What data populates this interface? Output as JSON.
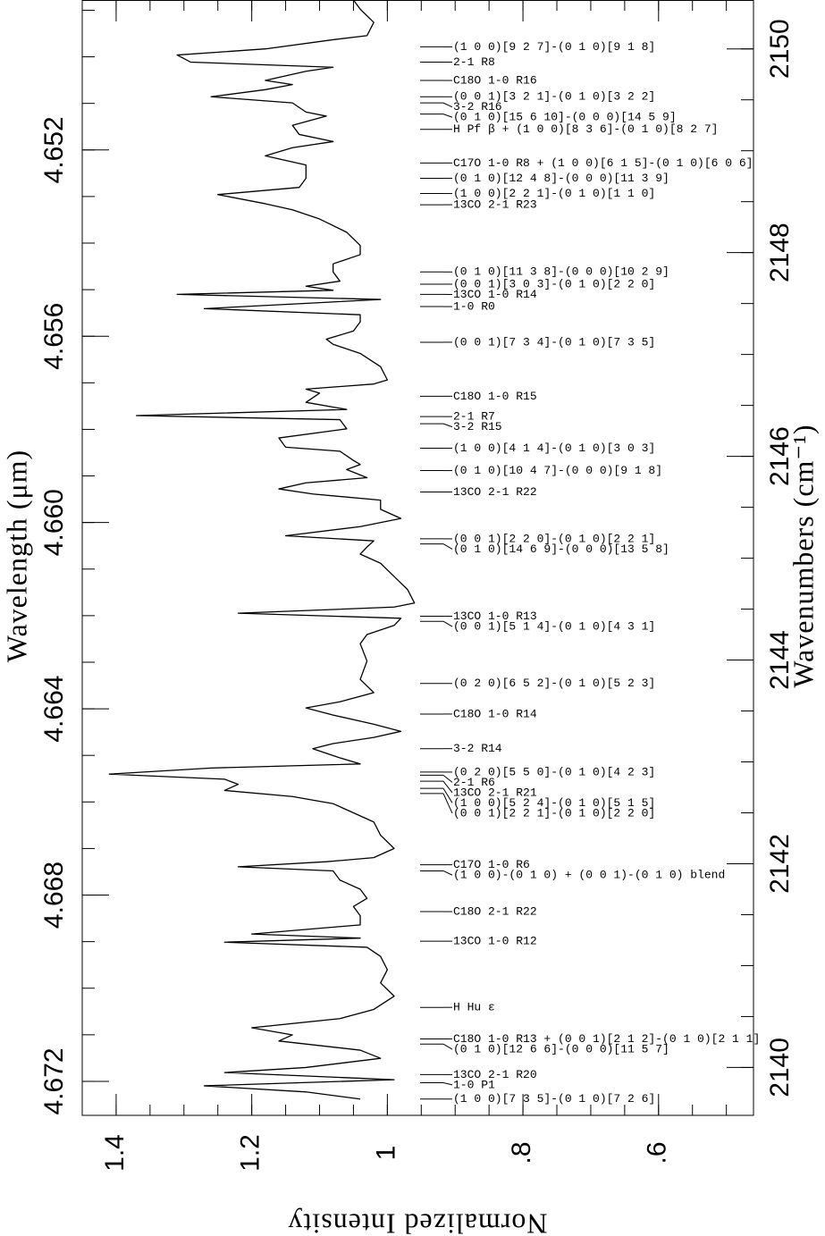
{
  "chart_data": {
    "type": "line",
    "orientation": "vertical",
    "x_label": "Wavenumbers (cm⁻¹)",
    "x2_label": "Wavelength (μm)",
    "y_label": "Normalized Intensity",
    "color": "#000000",
    "y_reversed": true,
    "xlim": [
      2150.48,
      2139.53
    ],
    "xticks": [
      2140,
      2142,
      2144,
      2146,
      2148,
      2150
    ],
    "xminorticks": [
      2140,
      2140.5,
      2141,
      2141.5,
      2142,
      2142.5,
      2143,
      2143.5,
      2144,
      2144.5,
      2145,
      2145.5,
      2146,
      2146.5,
      2147,
      2147.5,
      2148,
      2148.5,
      2149,
      2149.5,
      2150
    ],
    "x2lim": [
      4.64878,
      4.67273
    ],
    "x2ticks": [
      4.652,
      4.656,
      {
        "value": 4.66,
        "label": "4.660"
      },
      4.664,
      4.668,
      4.672
    ],
    "x2minorticks": [
      4.649,
      4.65,
      4.651,
      4.652,
      4.653,
      4.654,
      4.655,
      4.656,
      4.657,
      4.658,
      4.659,
      4.66,
      4.661,
      4.662,
      4.663,
      4.664,
      4.665,
      4.666,
      4.667,
      4.668,
      4.669,
      4.67,
      4.671,
      4.672
    ],
    "ylim": [
      0.46,
      1.45
    ],
    "yticks": [
      1.4,
      1.2,
      1,
      {
        "value": 0.8,
        "label": ".8"
      },
      {
        "value": 0.6,
        "label": ".6"
      }
    ],
    "yminorticks": [
      0.5,
      0.55,
      0.6,
      0.65,
      0.7,
      0.75,
      0.8,
      0.85,
      0.9,
      0.95,
      1,
      1.05,
      1.1,
      1.15,
      1.2,
      1.25,
      1.3,
      1.35,
      1.4
    ],
    "x": [
      2150.48,
      2150.39,
      2150.26,
      2150.13,
      2150.09,
      2150.0,
      2149.94,
      2149.87,
      2149.82,
      2149.78,
      2149.69,
      2149.65,
      2149.6,
      2149.53,
      2149.47,
      2149.38,
      2149.34,
      2149.25,
      2149.16,
      2149.09,
      2149.03,
      2148.95,
      2148.86,
      2148.73,
      2148.64,
      2148.57,
      2148.48,
      2148.42,
      2148.33,
      2148.2,
      2148.07,
      2147.98,
      2147.89,
      2147.81,
      2147.72,
      2147.67,
      2147.63,
      2147.59,
      2147.54,
      2147.45,
      2147.39,
      2147.32,
      2147.23,
      2147.15,
      2147.1,
      2147.01,
      2146.88,
      2146.75,
      2146.71,
      2146.66,
      2146.62,
      2146.53,
      2146.46,
      2146.4,
      2146.36,
      2146.27,
      2146.18,
      2146.09,
      2146.05,
      2145.96,
      2145.92,
      2145.87,
      2145.79,
      2145.74,
      2145.68,
      2145.63,
      2145.57,
      2145.48,
      2145.39,
      2145.31,
      2145.22,
      2145.17,
      2145.11,
      2145.04,
      2144.95,
      2144.82,
      2144.69,
      2144.56,
      2144.52,
      2144.46,
      2144.41,
      2144.34,
      2144.25,
      2144.16,
      2143.99,
      2143.81,
      2143.68,
      2143.59,
      2143.53,
      2143.46,
      2143.37,
      2143.3,
      2143.24,
      2143.18,
      2143.13,
      2143.04,
      2142.98,
      2142.94,
      2142.88,
      2142.83,
      2142.78,
      2142.72,
      2142.66,
      2142.59,
      2142.5,
      2142.41,
      2142.28,
      2142.15,
      2142.06,
      2142.02,
      2141.97,
      2141.93,
      2141.84,
      2141.75,
      2141.66,
      2141.58,
      2141.49,
      2141.4,
      2141.31,
      2141.27,
      2141.23,
      2141.18,
      2141.09,
      2140.96,
      2140.83,
      2140.7,
      2140.57,
      2140.48,
      2140.39,
      2140.32,
      2140.26,
      2140.17,
      2140.09,
      2140.0,
      2139.95,
      2139.88,
      2139.82,
      2139.76,
      2139.69
    ],
    "values": [
      1.05,
      1.04,
      1.02,
      1.03,
      1.08,
      1.18,
      1.31,
      1.29,
      1.08,
      1.12,
      1.18,
      1.14,
      1.18,
      1.26,
      1.14,
      1.12,
      1.09,
      1.14,
      1.13,
      1.08,
      1.14,
      1.18,
      1.12,
      1.12,
      1.13,
      1.25,
      1.18,
      1.14,
      1.1,
      1.06,
      1.04,
      1.04,
      1.08,
      1.08,
      1.07,
      1.12,
      1.08,
      1.31,
      1.01,
      1.27,
      1.04,
      1.04,
      1.05,
      1.09,
      1.08,
      1.04,
      1.01,
      1.0,
      1.02,
      1.12,
      1.1,
      1.12,
      1.06,
      1.37,
      1.07,
      1.06,
      1.16,
      1.15,
      1.07,
      1.05,
      1.04,
      1.06,
      1.03,
      1.12,
      1.16,
      1.11,
      1.01,
      1.01,
      0.98,
      1.04,
      1.15,
      1.02,
      1.03,
      1.04,
      1.01,
      0.99,
      0.97,
      0.96,
      0.99,
      1.22,
      0.98,
      0.99,
      1.03,
      1.04,
      1.03,
      1.04,
      1.02,
      1.07,
      1.12,
      1.08,
      1.02,
      0.98,
      1.02,
      1.08,
      1.11,
      1.07,
      1.04,
      1.26,
      1.41,
      1.24,
      1.22,
      1.24,
      1.14,
      1.08,
      1.05,
      1.02,
      1.01,
      0.99,
      1.02,
      1.09,
      1.22,
      1.08,
      1.07,
      1.04,
      1.03,
      1.05,
      1.04,
      1.04,
      1.2,
      1.04,
      1.24,
      1.03,
      1.01,
      1.0,
      1.01,
      0.99,
      1.02,
      1.07,
      1.2,
      1.14,
      1.16,
      1.04,
      1.01,
      1.12,
      1.24,
      0.99,
      1.27,
      1.12,
      1.04
    ],
    "annotations": [
      {
        "text": "(1 0 0)[9 2 7]-(0 1 0)[9 1 8]",
        "x": 2150.02
      },
      {
        "text": "2-1 R8",
        "x": 2149.87
      },
      {
        "text": "C18O 1-0 R16",
        "x": 2149.69
      },
      {
        "text": "(0 0 1)[3 2 1]-(0 1 0)[3 2 2]",
        "x": 2149.53
      },
      {
        "text": "3-2 R16",
        "x": 2149.47
      },
      {
        "text": "(0 1 0)[15 6 10]-(0 0 0)[14 5 9]",
        "x": 2149.36
      },
      {
        "text": "H Pf β + (1 0 0)[8 3 6]-(0 1 0)[8 2 7]",
        "x": 2149.21
      },
      {
        "text": "C17O 1-0 R8 + (1 0 0)[6 1 5]-(0 1 0)[6 0 6]",
        "x": 2148.88
      },
      {
        "text": "(0 1 0)[12 4 8]-(0 0 0)[11 3 9]",
        "x": 2148.73
      },
      {
        "text": "(1 0 0)[2 2 1]-(0 1 0)[1 1 0]",
        "x": 2148.58
      },
      {
        "text": "13CO 2-1 R23",
        "x": 2148.47
      },
      {
        "text": "(0 1 0)[11 3 8]-(0 0 0)[10 2 9]",
        "x": 2147.81
      },
      {
        "text": "(0 0 1)[3 0 3]-(0 1 0)[2 2 0]",
        "x": 2147.69
      },
      {
        "text": "13CO 1-0 R14",
        "x": 2147.59
      },
      {
        "text": "1-0 R0",
        "x": 2147.47
      },
      {
        "text": "(0 0 1)[7 3 4]-(0 1 0)[7 3 5]",
        "x": 2147.12
      },
      {
        "text": "C18O 1-0 R15",
        "x": 2146.59
      },
      {
        "text": "2-1 R7",
        "x": 2146.39
      },
      {
        "text": "3-2 R15",
        "x": 2146.32
      },
      {
        "text": "(1 0 0)[4 1 4]-(0 1 0)[3 0 3]",
        "x": 2146.08
      },
      {
        "text": "(0 1 0)[10 4 7]-(0 0 0)[9 1 8]",
        "x": 2145.86
      },
      {
        "text": "13CO 2-1 R22",
        "x": 2145.65
      },
      {
        "text": "(0 0 1)[2 2 0]-(0 1 0)[2 2 1]",
        "x": 2145.19
      },
      {
        "text": "(0 1 0)[14 6 9]-(0 0 0)[13 5 8]",
        "x": 2145.14
      },
      {
        "text": "13CO 1-0 R13",
        "x": 2144.43
      },
      {
        "text": "(0 0 1)[5 1 4]-(0 1 0)[4 3 1]",
        "x": 2144.38
      },
      {
        "text": "(0 2 0)[6 5 2]-(0 1 0)[5 2 3]",
        "x": 2143.77
      },
      {
        "text": "C18O 1-0 R14",
        "x": 2143.47
      },
      {
        "text": "3-2 R14",
        "x": 2143.13
      },
      {
        "text": "(0 2 0)[5 5 0]-(0 1 0)[4 2 3]",
        "x": 2142.9
      },
      {
        "text": "2-1 R6",
        "x": 2142.87
      },
      {
        "text": "13CO 2-1 R21",
        "x": 2142.81
      },
      {
        "text": "(1 0 0)[5 2 4]-(0 1 0)[5 1 5]",
        "x": 2142.74
      },
      {
        "text": "(0 0 1)[2 2 1]-(0 1 0)[2 2 0]",
        "x": 2142.69
      },
      {
        "text": "C17O 1-0 R6",
        "x": 2141.99
      },
      {
        "text": "(1 0 0)-(0 1 0) + (0 0 1)-(0 1 0) blend",
        "x": 2141.93
      },
      {
        "text": "C18O 2-1 R22",
        "x": 2141.53
      },
      {
        "text": "13CO 1-0 R12",
        "x": 2141.24
      },
      {
        "text": "H Hu ε",
        "x": 2140.59
      },
      {
        "text": "C18O 1-0 R13 + (0 0 1)[2 1 2]-(0 1 0)[2 1 1]",
        "x": 2140.28
      },
      {
        "text": "(0 1 0)[12 6 6]-(0 0 0)[11 5 7]",
        "x": 2140.23
      },
      {
        "text": "13CO 2-1 R20",
        "x": 2139.93
      },
      {
        "text": "1-0 P1",
        "x": 2139.85
      },
      {
        "text": "(1 0 0)[7 3 5]-(0 1 0)[7 2 6]",
        "x": 2139.69
      }
    ]
  }
}
